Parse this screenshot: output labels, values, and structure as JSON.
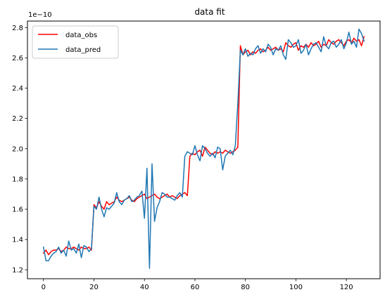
{
  "chart_data": {
    "type": "line",
    "title": "data fit",
    "xlabel": "",
    "ylabel": "",
    "y_multiplier": "1e−10",
    "xlim": [
      -6.35,
      133.35
    ],
    "ylim": [
      1.141,
      2.843
    ],
    "x_ticks": [
      0,
      20,
      40,
      60,
      80,
      100,
      120
    ],
    "y_ticks": [
      1.2,
      1.4,
      1.6,
      1.8,
      2.0,
      2.2,
      2.4,
      2.6,
      2.8
    ],
    "y_tick_labels": [
      "1.2",
      "1.4",
      "1.6",
      "1.8",
      "2.0",
      "2.2",
      "2.4",
      "2.6",
      "2.8"
    ],
    "grid": false,
    "legend_position": "top-left",
    "x": [
      0,
      1,
      2,
      3,
      4,
      5,
      6,
      7,
      8,
      9,
      10,
      11,
      12,
      13,
      14,
      15,
      16,
      17,
      18,
      19,
      20,
      21,
      22,
      23,
      24,
      25,
      26,
      27,
      28,
      29,
      30,
      31,
      32,
      33,
      34,
      35,
      36,
      37,
      38,
      39,
      40,
      41,
      42,
      43,
      44,
      45,
      46,
      47,
      48,
      49,
      50,
      51,
      52,
      53,
      54,
      55,
      56,
      57,
      58,
      59,
      60,
      61,
      62,
      63,
      64,
      65,
      66,
      67,
      68,
      69,
      70,
      71,
      72,
      73,
      74,
      75,
      76,
      77,
      78,
      79,
      80,
      81,
      82,
      83,
      84,
      85,
      86,
      87,
      88,
      89,
      90,
      91,
      92,
      93,
      94,
      95,
      96,
      97,
      98,
      99,
      100,
      101,
      102,
      103,
      104,
      105,
      106,
      107,
      108,
      109,
      110,
      111,
      112,
      113,
      114,
      115,
      116,
      117,
      118,
      119,
      120,
      121,
      122,
      123,
      124,
      125,
      126,
      127
    ],
    "series": [
      {
        "name": "data_obs",
        "color": "#ff0000",
        "values": [
          1.31,
          1.33,
          1.3,
          1.32,
          1.33,
          1.33,
          1.34,
          1.32,
          1.33,
          1.35,
          1.34,
          1.34,
          1.35,
          1.34,
          1.33,
          1.35,
          1.34,
          1.34,
          1.35,
          1.33,
          1.63,
          1.61,
          1.65,
          1.62,
          1.6,
          1.65,
          1.63,
          1.64,
          1.65,
          1.68,
          1.66,
          1.65,
          1.66,
          1.67,
          1.68,
          1.66,
          1.65,
          1.67,
          1.68,
          1.69,
          1.7,
          1.67,
          1.68,
          1.69,
          1.7,
          1.68,
          1.67,
          1.68,
          1.69,
          1.7,
          1.68,
          1.69,
          1.68,
          1.67,
          1.69,
          1.7,
          1.71,
          1.69,
          1.95,
          1.97,
          1.96,
          1.98,
          1.99,
          1.95,
          2.01,
          1.99,
          1.97,
          1.96,
          1.98,
          1.97,
          1.98,
          1.97,
          1.99,
          1.98,
          1.97,
          1.98,
          1.99,
          2.01,
          2.68,
          2.62,
          2.64,
          2.65,
          2.62,
          2.64,
          2.63,
          2.65,
          2.66,
          2.64,
          2.65,
          2.67,
          2.65,
          2.66,
          2.67,
          2.65,
          2.66,
          2.64,
          2.7,
          2.68,
          2.67,
          2.69,
          2.7,
          2.65,
          2.68,
          2.67,
          2.69,
          2.67,
          2.7,
          2.68,
          2.69,
          2.71,
          2.67,
          2.69,
          2.68,
          2.72,
          2.7,
          2.69,
          2.71,
          2.72,
          2.7,
          2.68,
          2.71,
          2.72,
          2.7,
          2.73,
          2.71,
          2.72,
          2.68,
          2.74
        ]
      },
      {
        "name": "data_pred",
        "color": "#1f77b4",
        "values": [
          1.35,
          1.26,
          1.26,
          1.29,
          1.31,
          1.32,
          1.35,
          1.31,
          1.33,
          1.29,
          1.39,
          1.33,
          1.34,
          1.31,
          1.37,
          1.28,
          1.36,
          1.35,
          1.32,
          1.34,
          1.62,
          1.6,
          1.68,
          1.6,
          1.55,
          1.61,
          1.6,
          1.62,
          1.64,
          1.71,
          1.65,
          1.63,
          1.66,
          1.67,
          1.69,
          1.65,
          1.66,
          1.68,
          1.69,
          1.72,
          1.54,
          1.87,
          1.21,
          1.9,
          1.52,
          1.61,
          1.65,
          1.71,
          1.7,
          1.68,
          1.68,
          1.67,
          1.66,
          1.69,
          1.71,
          1.68,
          1.95,
          1.98,
          1.97,
          1.96,
          2.02,
          1.96,
          1.92,
          2.02,
          2.0,
          1.97,
          1.95,
          1.97,
          1.94,
          2.01,
          2.0,
          1.86,
          1.95,
          1.97,
          1.99,
          1.96,
          2.02,
          2.3,
          2.65,
          2.62,
          2.66,
          2.61,
          2.63,
          2.62,
          2.66,
          2.68,
          2.63,
          2.66,
          2.64,
          2.69,
          2.67,
          2.62,
          2.66,
          2.65,
          2.68,
          2.62,
          2.59,
          2.72,
          2.7,
          2.67,
          2.68,
          2.72,
          2.63,
          2.65,
          2.69,
          2.62,
          2.66,
          2.69,
          2.7,
          2.67,
          2.64,
          2.74,
          2.68,
          2.66,
          2.7,
          2.71,
          2.67,
          2.69,
          2.72,
          2.66,
          2.7,
          2.77,
          2.69,
          2.71,
          2.67,
          2.79,
          2.76,
          2.71
        ]
      }
    ]
  }
}
